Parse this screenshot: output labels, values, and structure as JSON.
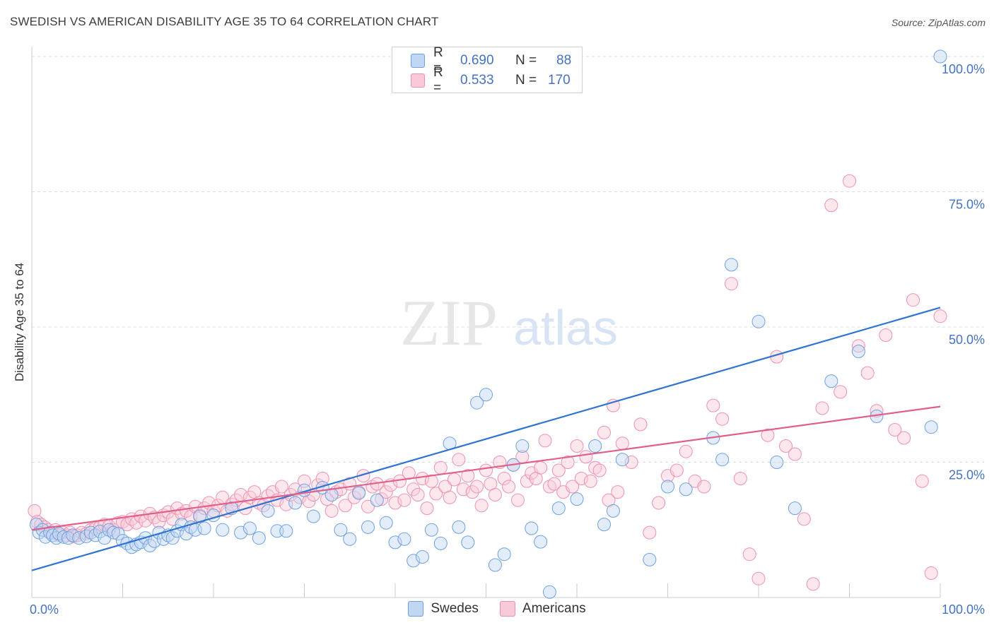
{
  "title": "SWEDISH VS AMERICAN DISABILITY AGE 35 TO 64 CORRELATION CHART",
  "source": "Source: ZipAtlas.com",
  "watermark": {
    "zip": "ZIP",
    "atlas": "atlas"
  },
  "legend": {
    "r_label": "R =",
    "n_label": "N =",
    "rows": [
      {
        "r": "0.690",
        "n": "88",
        "color": "#6fa0e0"
      },
      {
        "r": "0.533",
        "n": "170",
        "color": "#f090b0"
      }
    ]
  },
  "bottom_legend": [
    {
      "name": "Swedes",
      "color": "#6fa0e0"
    },
    {
      "name": "Americans",
      "color": "#f090b0"
    }
  ],
  "chart_data": {
    "type": "scatter",
    "title": "SWEDISH VS AMERICAN DISABILITY AGE 35 TO 64 CORRELATION CHART",
    "xlabel": "",
    "ylabel": "Disability Age 35 to 64",
    "xlim": [
      0,
      100
    ],
    "ylim": [
      0,
      100
    ],
    "x_tick_labels": [
      "0.0%",
      "100.0%"
    ],
    "y_tick_labels": [
      "25.0%",
      "50.0%",
      "75.0%",
      "100.0%"
    ],
    "y_ticks": [
      25,
      50,
      75,
      100
    ],
    "grid": true,
    "series": [
      {
        "name": "Swedes",
        "color": "#6fa0e0",
        "trend": {
          "x": [
            0,
            100
          ],
          "y": [
            5.0,
            53.6
          ],
          "color": "#2e74d0"
        },
        "points": [
          [
            0.5,
            13.5
          ],
          [
            0.8,
            12.0
          ],
          [
            1.2,
            12.5
          ],
          [
            1.5,
            11.2
          ],
          [
            2.0,
            12.0
          ],
          [
            2.3,
            11.5
          ],
          [
            2.7,
            11.0
          ],
          [
            3.0,
            11.8
          ],
          [
            3.5,
            11.2
          ],
          [
            4.0,
            11.0
          ],
          [
            4.5,
            11.5
          ],
          [
            5.2,
            11.0
          ],
          [
            6.0,
            11.3
          ],
          [
            6.5,
            12.0
          ],
          [
            7.0,
            11.5
          ],
          [
            7.5,
            12.2
          ],
          [
            8.0,
            11.0
          ],
          [
            8.5,
            12.5
          ],
          [
            9.0,
            12.0
          ],
          [
            9.5,
            11.8
          ],
          [
            10.0,
            10.5
          ],
          [
            10.5,
            10.0
          ],
          [
            11.0,
            9.3
          ],
          [
            11.5,
            9.8
          ],
          [
            12.0,
            10.2
          ],
          [
            12.5,
            11.0
          ],
          [
            13.0,
            9.6
          ],
          [
            13.5,
            10.4
          ],
          [
            14.0,
            12.0
          ],
          [
            14.5,
            10.8
          ],
          [
            15.0,
            11.5
          ],
          [
            15.5,
            11.0
          ],
          [
            16.0,
            12.3
          ],
          [
            16.5,
            13.5
          ],
          [
            17.0,
            11.8
          ],
          [
            17.5,
            13.0
          ],
          [
            18.0,
            12.5
          ],
          [
            18.5,
            15.0
          ],
          [
            19.0,
            12.8
          ],
          [
            20.0,
            15.2
          ],
          [
            21.0,
            12.5
          ],
          [
            22.0,
            16.5
          ],
          [
            23.0,
            12.0
          ],
          [
            24.0,
            12.8
          ],
          [
            25.0,
            11.0
          ],
          [
            26.0,
            16.0
          ],
          [
            27.0,
            12.3
          ],
          [
            28.0,
            12.3
          ],
          [
            29.0,
            17.5
          ],
          [
            30.0,
            19.8
          ],
          [
            31.0,
            15.0
          ],
          [
            32.0,
            20.3
          ],
          [
            33.0,
            19.0
          ],
          [
            34.0,
            12.5
          ],
          [
            35.0,
            10.8
          ],
          [
            36.0,
            19.3
          ],
          [
            37.0,
            13.0
          ],
          [
            38.0,
            18.0
          ],
          [
            39.0,
            13.8
          ],
          [
            40.0,
            10.2
          ],
          [
            41.0,
            10.8
          ],
          [
            42.0,
            6.8
          ],
          [
            43.0,
            7.5
          ],
          [
            44.0,
            12.5
          ],
          [
            45.0,
            10.0
          ],
          [
            46.0,
            28.5
          ],
          [
            47.0,
            13.0
          ],
          [
            48.0,
            10.2
          ],
          [
            49.0,
            36.0
          ],
          [
            50.0,
            37.5
          ],
          [
            51.0,
            6.0
          ],
          [
            52.0,
            8.0
          ],
          [
            53.0,
            24.5
          ],
          [
            54.0,
            28.0
          ],
          [
            55.0,
            12.8
          ],
          [
            56.0,
            10.3
          ],
          [
            57.0,
            1.0
          ],
          [
            58.0,
            16.5
          ],
          [
            60.0,
            18.2
          ],
          [
            62.0,
            28.0
          ],
          [
            63.0,
            13.5
          ],
          [
            64.0,
            16.0
          ],
          [
            65.0,
            25.5
          ],
          [
            68.0,
            7.0
          ],
          [
            70.0,
            20.5
          ],
          [
            72.0,
            20.0
          ],
          [
            75.0,
            29.5
          ],
          [
            76.0,
            25.5
          ],
          [
            77.0,
            61.5
          ],
          [
            80.0,
            51.0
          ],
          [
            82.0,
            25.0
          ],
          [
            84.0,
            16.5
          ],
          [
            88.0,
            40.0
          ],
          [
            91.0,
            45.5
          ],
          [
            93.0,
            33.5
          ],
          [
            99.0,
            31.5
          ],
          [
            100.0,
            100.0
          ]
        ]
      },
      {
        "name": "Americans",
        "color": "#f090b0",
        "trend": {
          "x": [
            0,
            100
          ],
          "y": [
            12.5,
            35.3
          ],
          "color": "#e0608a"
        },
        "points": [
          [
            0.3,
            16.0
          ],
          [
            0.6,
            14.0
          ],
          [
            1.0,
            13.5
          ],
          [
            1.4,
            13.0
          ],
          [
            1.8,
            12.5
          ],
          [
            2.2,
            12.0
          ],
          [
            2.6,
            12.5
          ],
          [
            3.0,
            11.5
          ],
          [
            3.4,
            12.0
          ],
          [
            3.8,
            11.5
          ],
          [
            4.2,
            12.0
          ],
          [
            4.6,
            11.3
          ],
          [
            5.0,
            11.5
          ],
          [
            5.5,
            12.0
          ],
          [
            6.0,
            11.8
          ],
          [
            6.5,
            12.5
          ],
          [
            7.0,
            12.8
          ],
          [
            7.5,
            13.0
          ],
          [
            8.0,
            13.5
          ],
          [
            8.5,
            13.2
          ],
          [
            9.0,
            12.5
          ],
          [
            9.5,
            13.8
          ],
          [
            10.0,
            14.0
          ],
          [
            10.5,
            13.5
          ],
          [
            11.0,
            14.5
          ],
          [
            11.5,
            13.8
          ],
          [
            12.0,
            15.0
          ],
          [
            12.5,
            14.2
          ],
          [
            13.0,
            15.5
          ],
          [
            13.5,
            14.8
          ],
          [
            14.0,
            14.0
          ],
          [
            14.5,
            15.2
          ],
          [
            15.0,
            15.8
          ],
          [
            15.5,
            14.5
          ],
          [
            16.0,
            16.5
          ],
          [
            16.5,
            15.5
          ],
          [
            17.0,
            16.0
          ],
          [
            17.5,
            15.0
          ],
          [
            18.0,
            16.8
          ],
          [
            18.5,
            15.2
          ],
          [
            19.0,
            16.5
          ],
          [
            19.5,
            17.5
          ],
          [
            20.0,
            16.0
          ],
          [
            20.5,
            17.0
          ],
          [
            21.0,
            18.5
          ],
          [
            21.5,
            16.0
          ],
          [
            22.0,
            17.2
          ],
          [
            22.5,
            18.0
          ],
          [
            23.0,
            19.0
          ],
          [
            23.5,
            16.5
          ],
          [
            24.0,
            18.5
          ],
          [
            24.5,
            19.5
          ],
          [
            25.0,
            17.5
          ],
          [
            25.5,
            17.0
          ],
          [
            26.0,
            18.8
          ],
          [
            26.5,
            19.5
          ],
          [
            27.0,
            18.0
          ],
          [
            27.5,
            20.5
          ],
          [
            28.0,
            17.2
          ],
          [
            28.5,
            19.0
          ],
          [
            29.0,
            20.0
          ],
          [
            29.5,
            18.5
          ],
          [
            30.0,
            21.5
          ],
          [
            30.5,
            17.8
          ],
          [
            31.0,
            19.0
          ],
          [
            31.5,
            20.8
          ],
          [
            32.0,
            22.0
          ],
          [
            32.5,
            18.2
          ],
          [
            33.0,
            16.0
          ],
          [
            33.5,
            19.5
          ],
          [
            34.0,
            20.0
          ],
          [
            34.5,
            17.0
          ],
          [
            35.0,
            21.0
          ],
          [
            35.5,
            18.5
          ],
          [
            36.0,
            19.5
          ],
          [
            36.5,
            22.5
          ],
          [
            37.0,
            16.8
          ],
          [
            37.5,
            20.5
          ],
          [
            38.0,
            21.0
          ],
          [
            38.5,
            18.2
          ],
          [
            39.0,
            19.5
          ],
          [
            39.5,
            20.8
          ],
          [
            40.0,
            17.5
          ],
          [
            40.5,
            21.5
          ],
          [
            41.0,
            18.0
          ],
          [
            41.5,
            23.0
          ],
          [
            42.0,
            20.0
          ],
          [
            42.5,
            19.0
          ],
          [
            43.0,
            22.0
          ],
          [
            43.5,
            16.5
          ],
          [
            44.0,
            21.5
          ],
          [
            44.5,
            19.2
          ],
          [
            45.0,
            24.0
          ],
          [
            45.5,
            20.5
          ],
          [
            46.0,
            18.5
          ],
          [
            46.5,
            21.8
          ],
          [
            47.0,
            25.5
          ],
          [
            47.5,
            20.0
          ],
          [
            48.0,
            22.5
          ],
          [
            48.5,
            19.5
          ],
          [
            49.0,
            20.5
          ],
          [
            49.5,
            17.0
          ],
          [
            50.0,
            23.5
          ],
          [
            50.5,
            21.0
          ],
          [
            51.0,
            19.0
          ],
          [
            51.5,
            25.0
          ],
          [
            52.0,
            22.0
          ],
          [
            52.5,
            20.5
          ],
          [
            53.0,
            24.5
          ],
          [
            53.5,
            18.0
          ],
          [
            54.0,
            26.0
          ],
          [
            54.5,
            21.5
          ],
          [
            55.0,
            23.0
          ],
          [
            55.5,
            22.0
          ],
          [
            56.0,
            24.0
          ],
          [
            56.5,
            29.0
          ],
          [
            57.0,
            20.5
          ],
          [
            57.5,
            21.0
          ],
          [
            58.0,
            23.5
          ],
          [
            58.5,
            19.5
          ],
          [
            59.0,
            25.0
          ],
          [
            59.5,
            20.5
          ],
          [
            60.0,
            28.0
          ],
          [
            60.5,
            22.0
          ],
          [
            61.0,
            26.0
          ],
          [
            61.5,
            21.5
          ],
          [
            62.0,
            24.0
          ],
          [
            62.5,
            23.5
          ],
          [
            63.0,
            30.5
          ],
          [
            63.5,
            18.0
          ],
          [
            64.0,
            35.5
          ],
          [
            64.5,
            19.5
          ],
          [
            65.0,
            28.5
          ],
          [
            66.0,
            25.0
          ],
          [
            67.0,
            32.0
          ],
          [
            68.0,
            12.0
          ],
          [
            69.0,
            17.5
          ],
          [
            70.0,
            22.5
          ],
          [
            71.0,
            23.5
          ],
          [
            72.0,
            27.0
          ],
          [
            73.0,
            21.5
          ],
          [
            74.0,
            20.5
          ],
          [
            75.0,
            35.5
          ],
          [
            76.0,
            33.0
          ],
          [
            77.0,
            58.0
          ],
          [
            78.0,
            22.0
          ],
          [
            79.0,
            8.0
          ],
          [
            80.0,
            3.5
          ],
          [
            81.0,
            30.0
          ],
          [
            82.0,
            44.5
          ],
          [
            83.0,
            28.0
          ],
          [
            84.0,
            26.5
          ],
          [
            85.0,
            14.5
          ],
          [
            86.0,
            2.5
          ],
          [
            87.0,
            35.0
          ],
          [
            88.0,
            72.5
          ],
          [
            89.0,
            38.0
          ],
          [
            90.0,
            77.0
          ],
          [
            91.0,
            46.5
          ],
          [
            92.0,
            41.5
          ],
          [
            93.0,
            34.5
          ],
          [
            94.0,
            48.5
          ],
          [
            95.0,
            31.0
          ],
          [
            96.0,
            29.5
          ],
          [
            97.0,
            55.0
          ],
          [
            98.0,
            21.5
          ],
          [
            99.0,
            4.5
          ],
          [
            100.0,
            52.0
          ]
        ]
      }
    ]
  }
}
